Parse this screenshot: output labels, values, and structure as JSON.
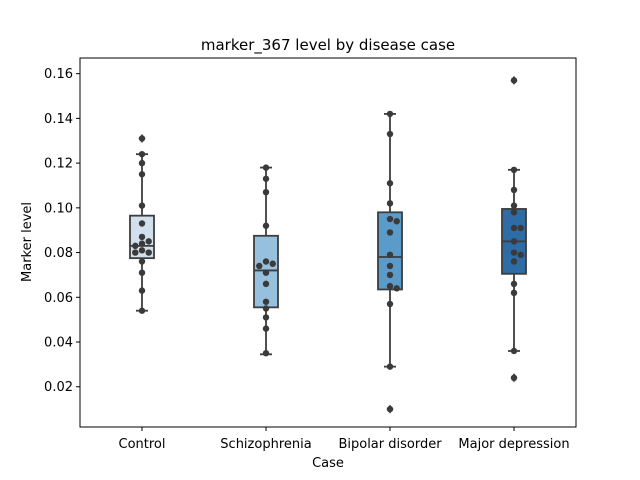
{
  "chart_data": {
    "type": "box",
    "title": "marker_367 level by disease case",
    "xlabel": "Case",
    "ylabel": "Marker level",
    "ylim": [
      0.002,
      0.167
    ],
    "yticks": [
      "0.02",
      "0.04",
      "0.06",
      "0.08",
      "0.10",
      "0.12",
      "0.14",
      "0.16"
    ],
    "grid": false,
    "legend": "none",
    "categories": [
      "Control",
      "Schizophrenia",
      "Bipolar disorder",
      "Major depression"
    ],
    "colors": [
      "#d2e0ee",
      "#96c0dd",
      "#5a9bca",
      "#2d6ca4"
    ],
    "point_color": "#3a3a3a",
    "boxes": [
      {
        "q1": 0.0775,
        "median": 0.083,
        "q3": 0.0965,
        "whisker_low": 0.054,
        "whisker_high": 0.124,
        "outliers": [
          0.131
        ]
      },
      {
        "q1": 0.0555,
        "median": 0.072,
        "q3": 0.0875,
        "whisker_low": 0.0345,
        "whisker_high": 0.118,
        "outliers": []
      },
      {
        "q1": 0.0635,
        "median": 0.078,
        "q3": 0.098,
        "whisker_low": 0.029,
        "whisker_high": 0.142,
        "outliers": [
          0.01
        ]
      },
      {
        "q1": 0.0705,
        "median": 0.085,
        "q3": 0.0995,
        "whisker_low": 0.036,
        "whisker_high": 0.117,
        "outliers": [
          0.157,
          0.024
        ]
      }
    ],
    "points": [
      [
        0.131,
        0.124,
        0.12,
        0.115,
        0.101,
        0.093,
        0.087,
        0.085,
        0.084,
        0.083,
        0.081,
        0.08,
        0.08,
        0.076,
        0.071,
        0.063,
        0.054
      ],
      [
        0.118,
        0.113,
        0.107,
        0.092,
        0.076,
        0.075,
        0.074,
        0.071,
        0.066,
        0.058,
        0.055,
        0.051,
        0.046,
        0.035
      ],
      [
        0.142,
        0.133,
        0.111,
        0.102,
        0.095,
        0.094,
        0.089,
        0.079,
        0.074,
        0.07,
        0.065,
        0.064,
        0.057,
        0.029,
        0.01
      ],
      [
        0.157,
        0.117,
        0.108,
        0.101,
        0.098,
        0.091,
        0.091,
        0.085,
        0.08,
        0.079,
        0.076,
        0.066,
        0.062,
        0.036,
        0.024
      ]
    ]
  }
}
